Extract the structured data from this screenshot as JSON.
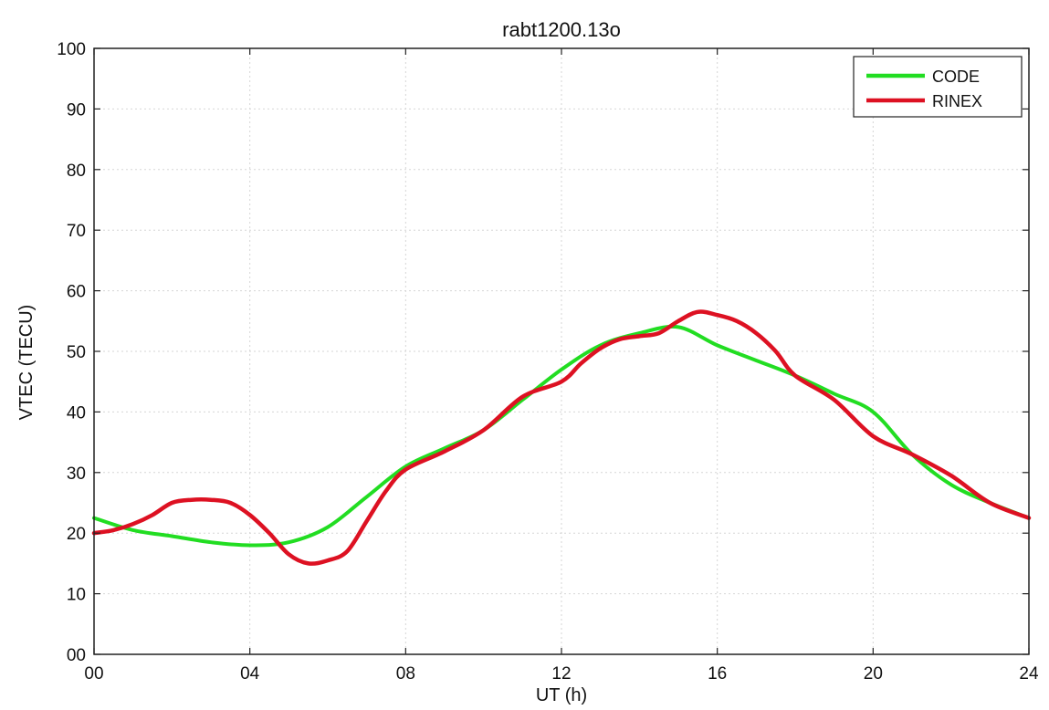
{
  "chart_data": {
    "type": "line",
    "title": "rabt1200.13o",
    "xlabel": "UT (h)",
    "ylabel": "VTEC (TECU)",
    "xlim": [
      0,
      24
    ],
    "ylim": [
      0,
      100
    ],
    "xticks": [
      0,
      4,
      8,
      12,
      16,
      20,
      24
    ],
    "xtick_labels": [
      "00",
      "04",
      "08",
      "12",
      "16",
      "20",
      "24"
    ],
    "yticks": [
      0,
      10,
      20,
      30,
      40,
      50,
      60,
      70,
      80,
      90,
      100
    ],
    "ytick_labels": [
      "00",
      "10",
      "20",
      "30",
      "40",
      "50",
      "60",
      "70",
      "80",
      "90",
      "100"
    ],
    "grid": true,
    "legend_position": "top-right",
    "series": [
      {
        "name": "CODE",
        "color": "#22dd22",
        "x": [
          0,
          1,
          2,
          3,
          4,
          5,
          6,
          7,
          8,
          9,
          10,
          11,
          12,
          13,
          14,
          15,
          16,
          17,
          18,
          19,
          20,
          21,
          22,
          23,
          24
        ],
        "y": [
          22.5,
          20.5,
          19.5,
          18.5,
          18,
          18.5,
          21,
          26,
          31,
          34,
          37,
          42,
          47,
          51,
          53,
          54,
          51,
          48.5,
          46,
          43,
          40,
          33,
          28,
          25,
          22.5
        ]
      },
      {
        "name": "RINEX",
        "color": "#dd1122",
        "x": [
          0,
          0.5,
          1,
          1.5,
          2,
          2.5,
          3,
          3.5,
          4,
          4.5,
          5,
          5.5,
          6,
          6.5,
          7,
          7.5,
          8,
          9,
          10,
          11,
          12,
          12.5,
          13,
          13.5,
          14,
          14.5,
          15,
          15.5,
          16,
          16.5,
          17,
          17.5,
          18,
          19,
          20,
          21,
          22,
          23,
          24
        ],
        "y": [
          20,
          20.5,
          21.5,
          23,
          25,
          25.5,
          25.5,
          25,
          23,
          20,
          16.5,
          15,
          15.5,
          17,
          22,
          27,
          30.5,
          33.5,
          37,
          42.5,
          45,
          48,
          50.5,
          52,
          52.5,
          53,
          55,
          56.5,
          56,
          55,
          53,
          50,
          46,
          42,
          36,
          33,
          29.5,
          25,
          22.5
        ]
      }
    ]
  }
}
